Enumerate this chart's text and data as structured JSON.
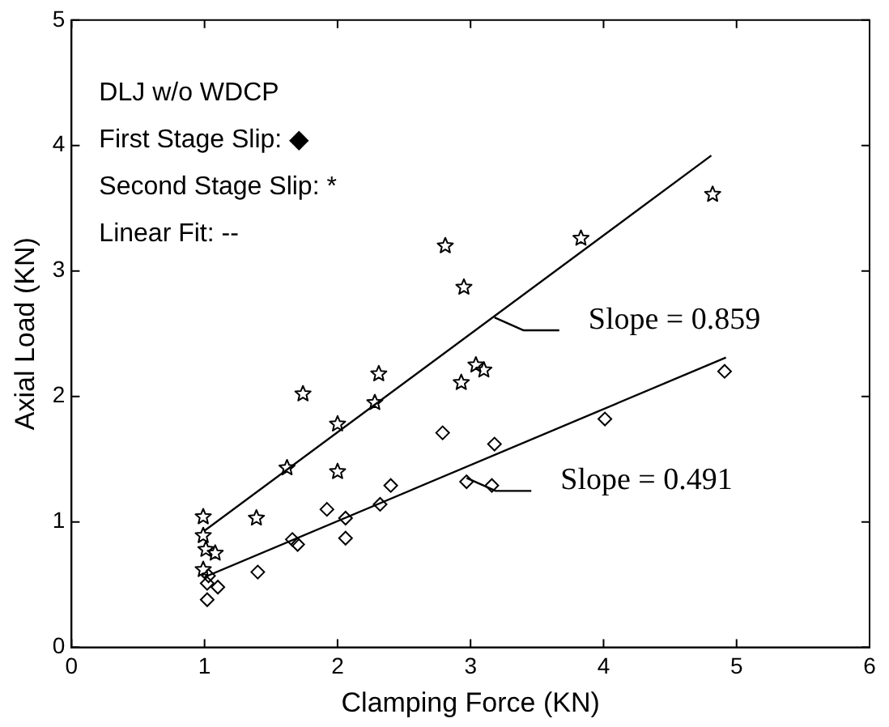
{
  "chart_data": {
    "type": "scatter",
    "xlabel": "Clamping Force (KN)",
    "ylabel": "Axial Load (KN)",
    "xlim": [
      0,
      6
    ],
    "ylim": [
      0,
      5
    ],
    "xticks": [
      0,
      1,
      2,
      3,
      4,
      5,
      6
    ],
    "yticks": [
      0,
      1,
      2,
      3,
      4,
      5
    ],
    "grid": false,
    "legend": false,
    "series": [
      {
        "type": "scatter",
        "marker": "star",
        "color": "#000000",
        "x": [
          0.99,
          0.99,
          1.01,
          1.08,
          0.99,
          1.39,
          1.62,
          1.74,
          2.0,
          2.0,
          2.28,
          2.31,
          2.81,
          2.95,
          2.93,
          3.04,
          3.1,
          3.83,
          4.82
        ],
        "values": [
          1.04,
          0.89,
          0.78,
          0.75,
          0.62,
          1.03,
          1.43,
          2.02,
          1.78,
          1.4,
          1.95,
          2.18,
          3.2,
          2.87,
          2.11,
          2.25,
          2.21,
          3.26,
          3.61
        ]
      },
      {
        "type": "scatter",
        "marker": "diamond",
        "color": "#000000",
        "x": [
          1.02,
          1.02,
          1.03,
          1.1,
          1.4,
          1.66,
          1.7,
          1.92,
          2.06,
          2.06,
          2.32,
          2.4,
          2.79,
          2.97,
          3.16,
          3.18,
          4.01,
          4.91
        ],
        "values": [
          0.38,
          0.51,
          0.57,
          0.48,
          0.6,
          0.86,
          0.82,
          1.1,
          1.03,
          0.87,
          1.14,
          1.29,
          1.71,
          1.32,
          1.29,
          1.62,
          1.82,
          2.2
        ]
      },
      {
        "type": "line",
        "marker": "none",
        "line_style": "solid",
        "color": "#000000",
        "x": [
          1.0,
          4.81
        ],
        "values": [
          0.93,
          3.92
        ]
      },
      {
        "type": "line",
        "marker": "none",
        "line_style": "solid",
        "color": "#000000",
        "x": [
          1.0,
          4.92
        ],
        "values": [
          0.56,
          2.31
        ]
      }
    ],
    "annotations": [
      "DLJ w/o WDCP",
      "First Stage Slip: ◆",
      "Second Stage Slip: *",
      "Linear Fit: --",
      {
        "text": "Slope = 0.859",
        "x": 3.18,
        "y": 2.63
      },
      {
        "text": "Slope = 0.491",
        "x": 2.97,
        "y": 1.35
      }
    ]
  }
}
